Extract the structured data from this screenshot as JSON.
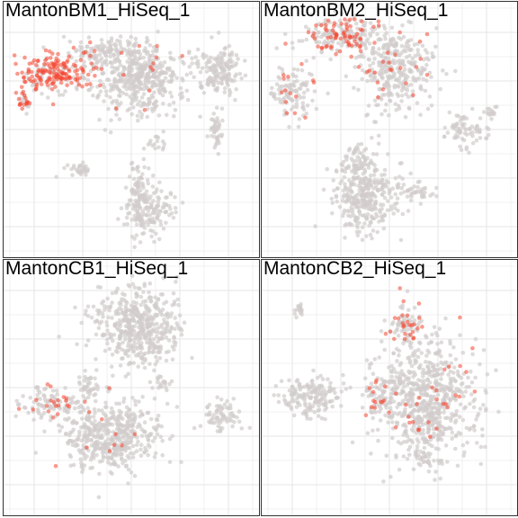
{
  "colors": {
    "background": "#ffffff",
    "grid": "#e6e6e6",
    "border": "#333333",
    "point_low": "#d2cccc",
    "point_high": "#f4452f"
  },
  "chart_data": [
    {
      "type": "scatter",
      "title": "MantonBM1_HiSeq_1",
      "xlabel": "",
      "ylabel": "",
      "grid": true,
      "legend": "none",
      "xlim": [
        0,
        100
      ],
      "ylim": [
        0,
        100
      ],
      "clusters": [
        {
          "cx": 52,
          "cy": 72,
          "sx": 9,
          "sy": 8,
          "n": 480,
          "expr": 0.02
        },
        {
          "cx": 86,
          "cy": 74,
          "sx": 5,
          "sy": 5,
          "n": 160,
          "expr": 0.0
        },
        {
          "cx": 18,
          "cy": 73,
          "sx": 8,
          "sy": 4,
          "n": 210,
          "expr": 0.75
        },
        {
          "cx": 35,
          "cy": 82,
          "sx": 5,
          "sy": 3,
          "n": 80,
          "expr": 0.05
        },
        {
          "cx": 6,
          "cy": 61,
          "sx": 1.5,
          "sy": 2,
          "n": 25,
          "expr": 0.5
        },
        {
          "cx": 85,
          "cy": 49,
          "sx": 1.5,
          "sy": 4,
          "n": 40,
          "expr": 0.0
        },
        {
          "cx": 57,
          "cy": 16,
          "sx": 5,
          "sy": 5,
          "n": 160,
          "expr": 0.0
        },
        {
          "cx": 52,
          "cy": 27,
          "sx": 2,
          "sy": 6,
          "n": 60,
          "expr": 0.0
        },
        {
          "cx": 28,
          "cy": 34,
          "sx": 3,
          "sy": 1.5,
          "n": 30,
          "expr": 0.0
        },
        {
          "cx": 60,
          "cy": 45,
          "sx": 2,
          "sy": 2,
          "n": 15,
          "expr": 0.0
        }
      ]
    },
    {
      "type": "scatter",
      "title": "MantonBM2_HiSeq_1",
      "xlabel": "",
      "ylabel": "",
      "grid": true,
      "legend": "none",
      "xlim": [
        0,
        100
      ],
      "ylim": [
        0,
        100
      ],
      "clusters": [
        {
          "cx": 30,
          "cy": 89,
          "sx": 9,
          "sy": 4,
          "n": 200,
          "expr": 0.35
        },
        {
          "cx": 52,
          "cy": 75,
          "sx": 8,
          "sy": 9,
          "n": 330,
          "expr": 0.05
        },
        {
          "cx": 10,
          "cy": 66,
          "sx": 5,
          "sy": 6,
          "n": 120,
          "expr": 0.12
        },
        {
          "cx": 80,
          "cy": 50,
          "sx": 4,
          "sy": 4,
          "n": 70,
          "expr": 0.0
        },
        {
          "cx": 92,
          "cy": 57,
          "sx": 2,
          "sy": 1.5,
          "n": 15,
          "expr": 0.0
        },
        {
          "cx": 40,
          "cy": 22,
          "sx": 7,
          "sy": 8,
          "n": 320,
          "expr": 0.0
        },
        {
          "cx": 36,
          "cy": 38,
          "sx": 2,
          "sy": 3,
          "n": 45,
          "expr": 0.0
        },
        {
          "cx": 58,
          "cy": 24,
          "sx": 6,
          "sy": 2,
          "n": 45,
          "expr": 0.0
        }
      ]
    },
    {
      "type": "scatter",
      "title": "MantonCB1_HiSeq_1",
      "xlabel": "",
      "ylabel": "",
      "grid": true,
      "legend": "none",
      "xlim": [
        0,
        100
      ],
      "ylim": [
        0,
        100
      ],
      "clusters": [
        {
          "cx": 52,
          "cy": 75,
          "sx": 9,
          "sy": 8,
          "n": 480,
          "expr": 0.0
        },
        {
          "cx": 42,
          "cy": 30,
          "sx": 10,
          "sy": 7,
          "n": 480,
          "expr": 0.02
        },
        {
          "cx": 17,
          "cy": 44,
          "sx": 7,
          "sy": 4,
          "n": 110,
          "expr": 0.25
        },
        {
          "cx": 87,
          "cy": 38,
          "sx": 4,
          "sy": 3,
          "n": 70,
          "expr": 0.0
        },
        {
          "cx": 32,
          "cy": 50,
          "sx": 2,
          "sy": 3,
          "n": 35,
          "expr": 0.0
        },
        {
          "cx": 62,
          "cy": 52,
          "sx": 2,
          "sy": 2,
          "n": 18,
          "expr": 0.0
        }
      ]
    },
    {
      "type": "scatter",
      "title": "MantonCB2_HiSeq_1",
      "xlabel": "",
      "ylabel": "",
      "grid": true,
      "legend": "none",
      "xlim": [
        0,
        100
      ],
      "ylim": [
        0,
        100
      ],
      "clusters": [
        {
          "cx": 64,
          "cy": 45,
          "sx": 11,
          "sy": 12,
          "n": 700,
          "expr": 0.04
        },
        {
          "cx": 57,
          "cy": 76,
          "sx": 4,
          "sy": 4,
          "n": 80,
          "expr": 0.2
        },
        {
          "cx": 17,
          "cy": 46,
          "sx": 7,
          "sy": 4,
          "n": 160,
          "expr": 0.0
        },
        {
          "cx": 13,
          "cy": 82,
          "sx": 1.5,
          "sy": 1.5,
          "n": 18,
          "expr": 0.0
        },
        {
          "cx": 45,
          "cy": 46,
          "sx": 3,
          "sy": 4,
          "n": 45,
          "expr": 0.3
        },
        {
          "cx": 65,
          "cy": 20,
          "sx": 3,
          "sy": 3,
          "n": 30,
          "expr": 0.0
        }
      ]
    }
  ]
}
